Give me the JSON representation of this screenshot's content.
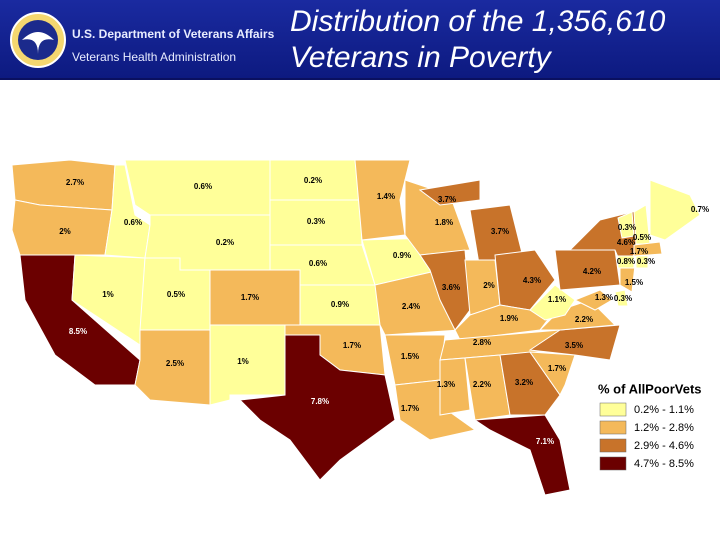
{
  "header": {
    "department": "U.S. Department of Veterans Affairs",
    "administration": "Veterans Health Administration",
    "title_lines": [
      "Distribution of the 1,356,610",
      "Veterans in Poverty"
    ]
  },
  "legend": {
    "title": "% of AllPoorVets",
    "items": [
      {
        "label": "0.2% - 1.1%",
        "color": "#ffff99"
      },
      {
        "label": "1.2% - 2.8%",
        "color": "#f4b95a"
      },
      {
        "label": "2.9% - 4.6%",
        "color": "#c8732a"
      },
      {
        "label": "4.7% - 8.5%",
        "color": "#6b0000"
      }
    ]
  },
  "regions": [
    {
      "label": "2.7%",
      "color": "#f4b95a"
    },
    {
      "label": "2%",
      "color": "#f4b95a"
    },
    {
      "label": "8.5%",
      "color": "#6b0000"
    },
    {
      "label": "1%",
      "color": "#ffff99"
    },
    {
      "label": "0.6%",
      "color": "#ffff99"
    },
    {
      "label": "0.6%",
      "color": "#ffff99"
    },
    {
      "label": "0.2%",
      "color": "#ffff99"
    },
    {
      "label": "0.5%",
      "color": "#ffff99"
    },
    {
      "label": "2.5%",
      "color": "#f4b95a"
    },
    {
      "label": "1.7%",
      "color": "#f4b95a"
    },
    {
      "label": "1%",
      "color": "#ffff99"
    },
    {
      "label": "0.2%",
      "color": "#ffff99"
    },
    {
      "label": "0.3%",
      "color": "#ffff99"
    },
    {
      "label": "0.6%",
      "color": "#ffff99"
    },
    {
      "label": "0.9%",
      "color": "#ffff99"
    },
    {
      "label": "1.7%",
      "color": "#f4b95a"
    },
    {
      "label": "7.8%",
      "color": "#6b0000"
    },
    {
      "label": "1.4%",
      "color": "#f4b95a"
    },
    {
      "label": "0.9%",
      "color": "#ffff99"
    },
    {
      "label": "2.4%",
      "color": "#f4b95a"
    },
    {
      "label": "1.5%",
      "color": "#f4b95a"
    },
    {
      "label": "1.7%",
      "color": "#f4b95a"
    },
    {
      "label": "1.8%",
      "color": "#f4b95a"
    },
    {
      "label": "3.6%",
      "color": "#c8732a"
    },
    {
      "label": "3.7%",
      "color": "#c8732a"
    },
    {
      "label": "3.7%",
      "color": "#c8732a"
    },
    {
      "label": "2%",
      "color": "#f4b95a"
    },
    {
      "label": "4.3%",
      "color": "#c8732a"
    },
    {
      "label": "1.9%",
      "color": "#f4b95a"
    },
    {
      "label": "2.8%",
      "color": "#f4b95a"
    },
    {
      "label": "1.3%",
      "color": "#f4b95a"
    },
    {
      "label": "2.2%",
      "color": "#f4b95a"
    },
    {
      "label": "3.2%",
      "color": "#c8732a"
    },
    {
      "label": "7.1%",
      "color": "#6b0000"
    },
    {
      "label": "1.7%",
      "color": "#f4b95a"
    },
    {
      "label": "3.5%",
      "color": "#c8732a"
    },
    {
      "label": "2.2%",
      "color": "#f4b95a"
    },
    {
      "label": "1.1%",
      "color": "#ffff99"
    },
    {
      "label": "4.2%",
      "color": "#c8732a"
    },
    {
      "label": "4.6%",
      "color": "#c8732a"
    },
    {
      "label": "1.3%",
      "color": "#f4b95a"
    },
    {
      "label": "0.3%",
      "color": "#ffff99"
    },
    {
      "label": "1.5%",
      "color": "#f4b95a"
    },
    {
      "label": "0.3%",
      "color": "#ffff99"
    },
    {
      "label": "0.5%",
      "color": "#ffff99"
    },
    {
      "label": "0.7%",
      "color": "#ffff99"
    },
    {
      "label": "1.7%",
      "color": "#f4b95a"
    },
    {
      "label": "0.8%",
      "color": "#ffff99"
    },
    {
      "label": "0.3%",
      "color": "#ffff99"
    }
  ]
}
